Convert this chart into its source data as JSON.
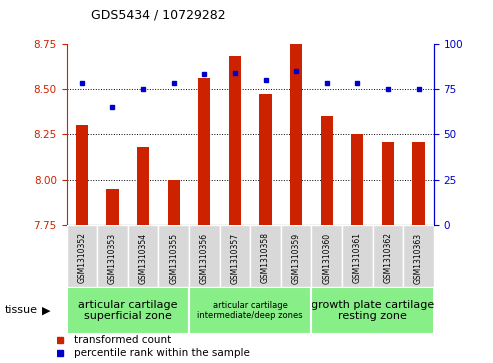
{
  "title": "GDS5434 / 10729282",
  "samples": [
    "GSM1310352",
    "GSM1310353",
    "GSM1310354",
    "GSM1310355",
    "GSM1310356",
    "GSM1310357",
    "GSM1310358",
    "GSM1310359",
    "GSM1310360",
    "GSM1310361",
    "GSM1310362",
    "GSM1310363"
  ],
  "transformed_count": [
    8.3,
    7.95,
    8.18,
    8.0,
    8.56,
    8.68,
    8.47,
    8.76,
    8.35,
    8.25,
    8.21,
    8.21
  ],
  "percentile_rank": [
    78,
    65,
    75,
    78,
    83,
    84,
    80,
    85,
    78,
    78,
    75,
    75
  ],
  "bar_color": "#cc2200",
  "dot_color": "#0000cc",
  "ylim_left": [
    7.75,
    8.75
  ],
  "ylim_right": [
    0,
    100
  ],
  "yticks_left": [
    7.75,
    8.0,
    8.25,
    8.5,
    8.75
  ],
  "yticks_right": [
    0,
    25,
    50,
    75,
    100
  ],
  "grid_vals": [
    8.0,
    8.25,
    8.5
  ],
  "tissue_groups": [
    {
      "label": "articular cartilage\nsuperficial zone",
      "indices": [
        0,
        1,
        2,
        3
      ],
      "font_size": 8
    },
    {
      "label": "articular cartilage\nintermediate/deep zones",
      "indices": [
        4,
        5,
        6,
        7
      ],
      "font_size": 6
    },
    {
      "label": "growth plate cartilage\nresting zone",
      "indices": [
        8,
        9,
        10,
        11
      ],
      "font_size": 8
    }
  ],
  "tissue_group_color": "#88ee88",
  "tissue_label": "tissue",
  "legend_bar_label": "transformed count",
  "legend_dot_label": "percentile rank within the sample",
  "sample_box_color": "#d8d8d8",
  "plot_bg": "#ffffff",
  "bar_width": 0.4
}
